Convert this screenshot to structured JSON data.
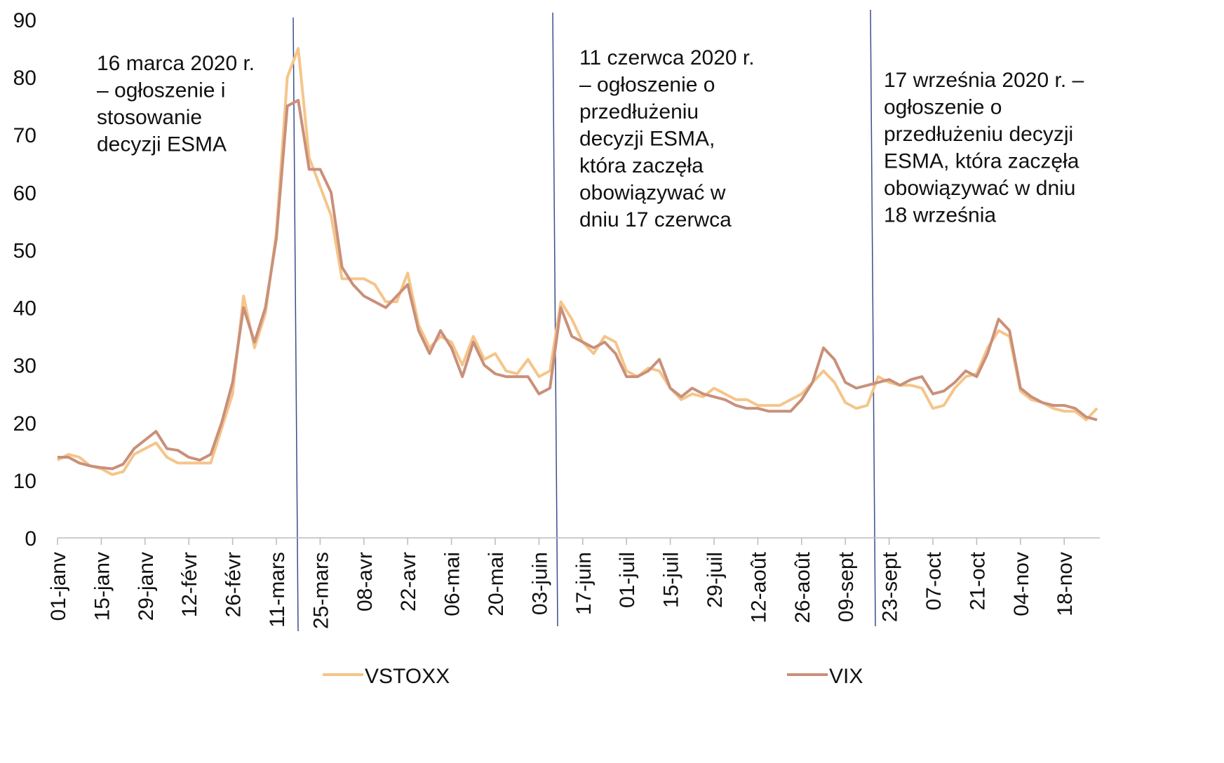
{
  "chart_data": {
    "type": "line",
    "categories": [
      "01-janv",
      null,
      null,
      null,
      "15-janv",
      null,
      null,
      null,
      "29-janv",
      null,
      null,
      null,
      "12-févr",
      null,
      null,
      null,
      "26-févr",
      null,
      null,
      null,
      "11-mars",
      null,
      null,
      null,
      "25-mars",
      null,
      null,
      null,
      "08-avr",
      null,
      null,
      null,
      "22-avr",
      null,
      null,
      null,
      "06-mai",
      null,
      null,
      null,
      "20-mai",
      null,
      null,
      null,
      "03-juin",
      null,
      null,
      null,
      "17-juin",
      null,
      null,
      null,
      "01-juil",
      null,
      null,
      null,
      "15-juil",
      null,
      null,
      null,
      "29-juil",
      null,
      null,
      null,
      "12-août",
      null,
      null,
      null,
      "26-août",
      null,
      null,
      null,
      "09-sept",
      null,
      null,
      null,
      "23-sept",
      null,
      null,
      null,
      "07-oct",
      null,
      null,
      null,
      "21-oct",
      null,
      null,
      null,
      "04-nov",
      null,
      null,
      null,
      "18-nov",
      null,
      null,
      null
    ],
    "series": [
      {
        "name": "VSTOXX",
        "color": "#f5c58a",
        "values": [
          13.5,
          14.5,
          14,
          12.5,
          12,
          11,
          11.5,
          14.5,
          15.5,
          16.5,
          14,
          13,
          13,
          13,
          13,
          19,
          25,
          42,
          33,
          39,
          53,
          80,
          85,
          66,
          61,
          56,
          45,
          45,
          45,
          44,
          41,
          41,
          46,
          37,
          33,
          35,
          34,
          30,
          35,
          31,
          32,
          29,
          28.5,
          31,
          28,
          29,
          41,
          38,
          34,
          32,
          35,
          34,
          29,
          28,
          29.5,
          29,
          26,
          24,
          25,
          24.5,
          26,
          25,
          24,
          24,
          23,
          23,
          23,
          24,
          25,
          27,
          29,
          27,
          23.5,
          22.5,
          23,
          28,
          27,
          26.5,
          26.5,
          26,
          22.5,
          23,
          26,
          28,
          28.5,
          33,
          36,
          35,
          25.5,
          24,
          23.5,
          22.5,
          22,
          22,
          20.5,
          22.5
        ]
      },
      {
        "name": "VIX",
        "color": "#c9907a",
        "values": [
          14,
          14,
          13,
          12.5,
          12.2,
          12,
          12.8,
          15.5,
          17,
          18.5,
          15.5,
          15.2,
          14,
          13.5,
          14.5,
          20,
          27,
          40,
          34,
          40,
          52,
          75,
          76,
          64,
          64,
          60,
          47,
          44,
          42,
          41,
          40,
          42,
          44,
          36,
          32,
          36,
          33,
          28,
          34,
          30,
          28.5,
          28,
          28,
          28,
          25,
          26,
          40,
          35,
          34,
          33,
          34,
          32,
          28,
          28,
          29,
          31,
          26,
          24.5,
          26,
          25,
          24.5,
          24,
          23,
          22.5,
          22.5,
          22,
          22,
          22,
          24,
          27,
          33,
          31,
          27,
          26,
          26.5,
          27,
          27.5,
          26.5,
          27.5,
          28,
          25,
          25.5,
          27,
          29,
          28,
          32,
          38,
          36,
          26,
          24.5,
          23.5,
          23,
          23,
          22.5,
          21,
          20.5
        ]
      }
    ],
    "ylim": [
      0,
      90
    ],
    "yticks": [
      0,
      10,
      20,
      30,
      40,
      50,
      60,
      70,
      80,
      90
    ],
    "annotations": [
      [
        "16 marca 2020 r.",
        "– ogłoszenie i",
        "stosowanie",
        "decyzji ESMA"
      ],
      [
        "11 czerwca 2020 r.",
        "– ogłoszenie o",
        "przedłużeniu",
        "decyzji ESMA,",
        "która zaczęła",
        "obowiązywać w",
        "dniu 17 czerwca"
      ],
      [
        "17 września 2020 r. –",
        "ogłoszenie o",
        "przedłużeniu decyzji",
        "ESMA, która zaczęła",
        "obowiązywać w dniu",
        "18 września"
      ]
    ]
  }
}
